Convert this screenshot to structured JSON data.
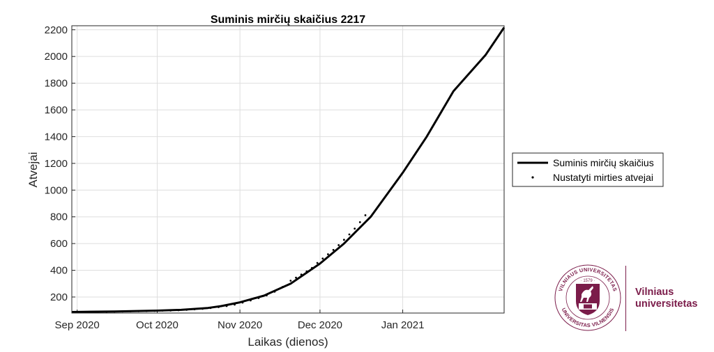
{
  "chart_data": {
    "type": "line",
    "title": "Suminis mirčių skaičius  2217",
    "xlabel": "Laikas (dienos)",
    "ylabel": "Atvejai",
    "x_start": "2020-08-30",
    "x_end": "2021-02-08",
    "xlim": [
      "2020-08-30",
      "2021-02-08"
    ],
    "ylim": [
      80,
      2230
    ],
    "xticks": [
      {
        "date": "2020-09-01",
        "label": "Sep 2020"
      },
      {
        "date": "2020-10-01",
        "label": "Oct 2020"
      },
      {
        "date": "2020-11-01",
        "label": "Nov 2020"
      },
      {
        "date": "2020-12-01",
        "label": "Dec 2020"
      },
      {
        "date": "2021-01-01",
        "label": "Jan 2021"
      }
    ],
    "yticks": [
      200,
      400,
      600,
      800,
      1000,
      1200,
      1400,
      1600,
      1800,
      2000,
      2200
    ],
    "grid": true,
    "legend_position": "right",
    "series": [
      {
        "name": "Suminis mirčių skaičius",
        "style": "line",
        "color": "#000000",
        "points": [
          [
            "2020-08-30",
            88
          ],
          [
            "2020-09-15",
            92
          ],
          [
            "2020-10-01",
            98
          ],
          [
            "2020-10-10",
            104
          ],
          [
            "2020-10-20",
            118
          ],
          [
            "2020-10-25",
            132
          ],
          [
            "2020-11-01",
            160
          ],
          [
            "2020-11-10",
            210
          ],
          [
            "2020-11-20",
            300
          ],
          [
            "2020-12-01",
            450
          ],
          [
            "2020-12-10",
            600
          ],
          [
            "2020-12-20",
            800
          ],
          [
            "2021-01-01",
            1130
          ],
          [
            "2021-01-10",
            1400
          ],
          [
            "2021-01-20",
            1740
          ],
          [
            "2021-02-01",
            2010
          ],
          [
            "2021-02-08",
            2217
          ]
        ]
      },
      {
        "name": "Nustatyti mirties atvejai",
        "style": "dots",
        "color": "#000000",
        "points": [
          [
            "2020-08-31",
            86
          ],
          [
            "2020-09-03",
            87
          ],
          [
            "2020-09-06",
            88
          ],
          [
            "2020-09-09",
            89
          ],
          [
            "2020-09-12",
            90
          ],
          [
            "2020-09-15",
            91
          ],
          [
            "2020-09-18",
            92
          ],
          [
            "2020-09-21",
            93
          ],
          [
            "2020-09-24",
            94
          ],
          [
            "2020-09-27",
            95
          ],
          [
            "2020-09-30",
            96
          ],
          [
            "2020-10-03",
            98
          ],
          [
            "2020-10-06",
            99
          ],
          [
            "2020-10-09",
            101
          ],
          [
            "2020-10-12",
            104
          ],
          [
            "2020-10-15",
            108
          ],
          [
            "2020-10-18",
            112
          ],
          [
            "2020-10-21",
            118
          ],
          [
            "2020-10-24",
            124
          ],
          [
            "2020-10-27",
            132
          ],
          [
            "2020-10-30",
            143
          ],
          [
            "2020-11-02",
            158
          ],
          [
            "2020-11-05",
            174
          ],
          [
            "2020-11-08",
            192
          ],
          [
            "2020-11-11",
            212
          ],
          [
            "2020-11-14",
            240
          ],
          [
            "2020-11-17",
            275
          ],
          [
            "2020-11-20",
            322
          ],
          [
            "2020-11-22",
            345
          ],
          [
            "2020-11-24",
            368
          ],
          [
            "2020-11-26",
            392
          ],
          [
            "2020-11-28",
            418
          ],
          [
            "2020-11-30",
            455
          ],
          [
            "2020-12-02",
            488
          ],
          [
            "2020-12-04",
            520
          ],
          [
            "2020-12-06",
            552
          ],
          [
            "2020-12-08",
            588
          ],
          [
            "2020-12-10",
            628
          ],
          [
            "2020-12-12",
            668
          ],
          [
            "2020-12-14",
            712
          ],
          [
            "2020-12-16",
            760
          ],
          [
            "2020-12-18",
            812
          ]
        ]
      }
    ]
  },
  "logo": {
    "name_line1": "Vilniaus",
    "name_line2": "universitetas",
    "ring_top": "VILNIAUS UNIVERSITETAS",
    "ring_bottom": "UNIVERSITAS VILNENSIS",
    "year": "1579",
    "color": "#7b1c4a"
  }
}
